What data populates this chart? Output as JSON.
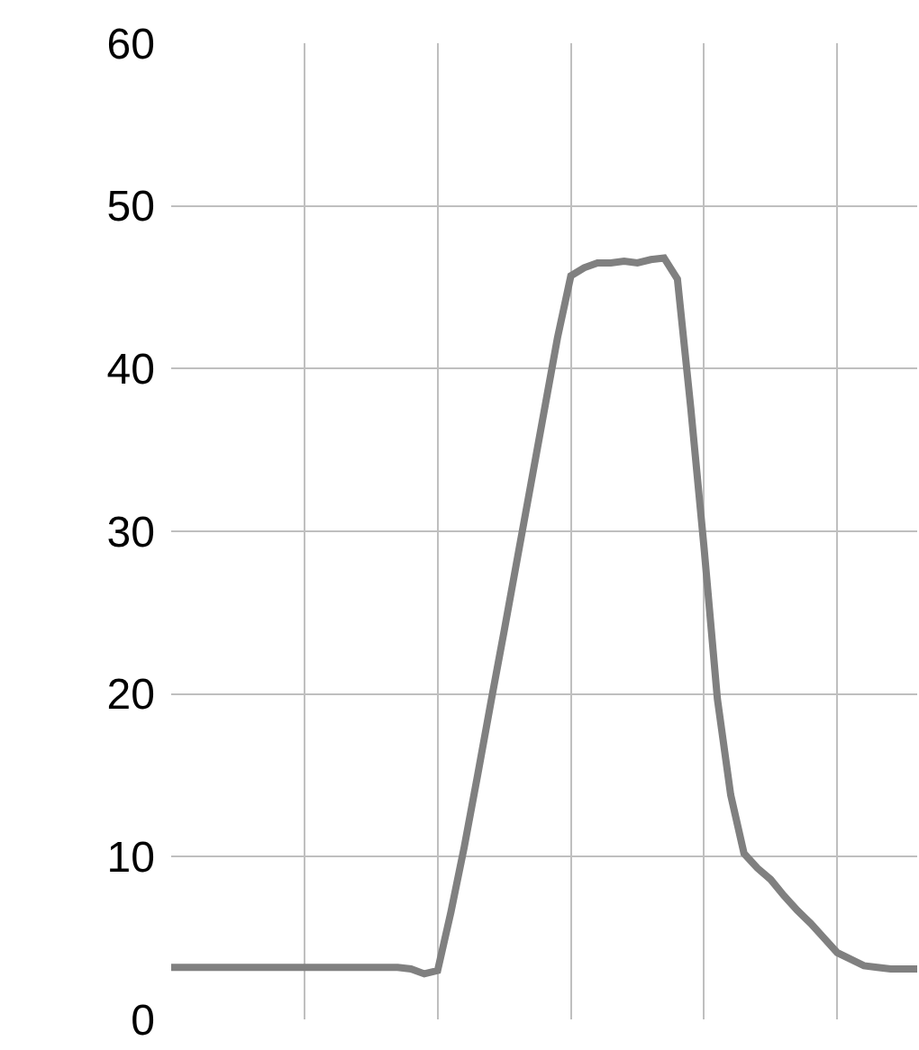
{
  "chart_data": {
    "type": "line",
    "tick_labels": "y",
    "grid": true,
    "marker": "none",
    "line_style": "solid",
    "categories": [
      null,
      null,
      null,
      null,
      null,
      null,
      null,
      null,
      null,
      null,
      null,
      null,
      null,
      null,
      null,
      null,
      null,
      null,
      null,
      null,
      null,
      null,
      null,
      null,
      null,
      null,
      null,
      null,
      null,
      null,
      null,
      null,
      null,
      null,
      null,
      null,
      null,
      null,
      null,
      null,
      null,
      null,
      null,
      null,
      null,
      null,
      null,
      null,
      null,
      null,
      null,
      null,
      null,
      null,
      null,
      null,
      null
    ],
    "series": [
      {
        "color": "#808080",
        "values": [
          3.2,
          3.2,
          3.2,
          3.2,
          3.2,
          3.2,
          3.2,
          3.2,
          3.2,
          3.2,
          3.2,
          3.2,
          3.2,
          3.2,
          3.2,
          3.2,
          3.2,
          3.2,
          3.1,
          2.8,
          3.0,
          6.6,
          10.6,
          15.0,
          19.5,
          23.9,
          28.4,
          32.9,
          37.4,
          41.9,
          45.7,
          46.2,
          46.5,
          46.5,
          46.6,
          46.5,
          46.7,
          46.8,
          45.5,
          37.6,
          29.0,
          19.7,
          13.8,
          10.2,
          9.3,
          8.6,
          7.6,
          6.7,
          5.9,
          5.0,
          4.1,
          3.7,
          3.3,
          3.2,
          3.1,
          3.1,
          3.1
        ]
      }
    ],
    "ylim": [
      0,
      60
    ],
    "yticks": [
      0,
      10,
      20,
      30,
      40,
      50,
      60
    ]
  }
}
